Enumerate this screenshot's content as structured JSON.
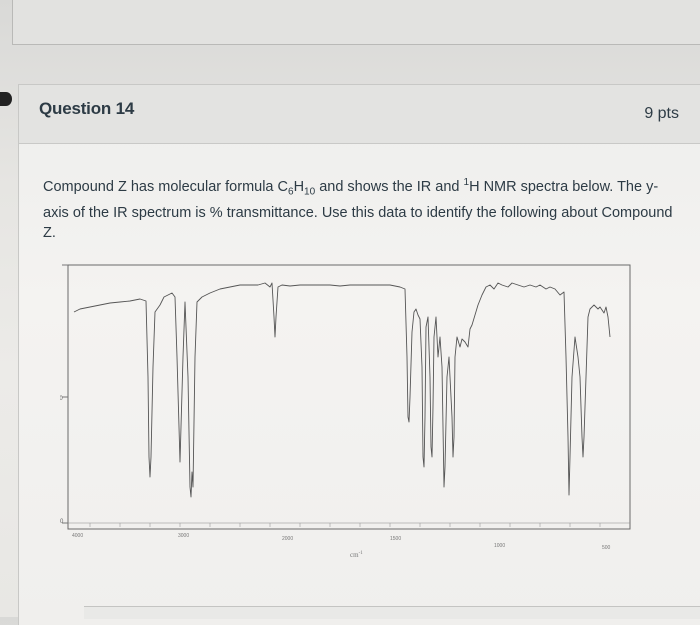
{
  "question": {
    "title": "Question 14",
    "points": "9 pts",
    "text_part1": "Compound Z has molecular formula C",
    "sub_c": "6",
    "text_part2": "H",
    "sub_h": "10",
    "text_part3": " and shows the IR and ",
    "sup_1": "1",
    "text_part4": "H NMR spectra below. The y-axis of the IR spectrum is % transmittance. Use this data to identify the following about Compound Z."
  },
  "ir_spectrum": {
    "y_ticks": [
      "100",
      "50",
      "0"
    ],
    "x_ticks": [
      "4000",
      "3000",
      "2000",
      "1500",
      "1000",
      "500"
    ],
    "x_unit": "cm",
    "x_unit_exp": "-1"
  }
}
